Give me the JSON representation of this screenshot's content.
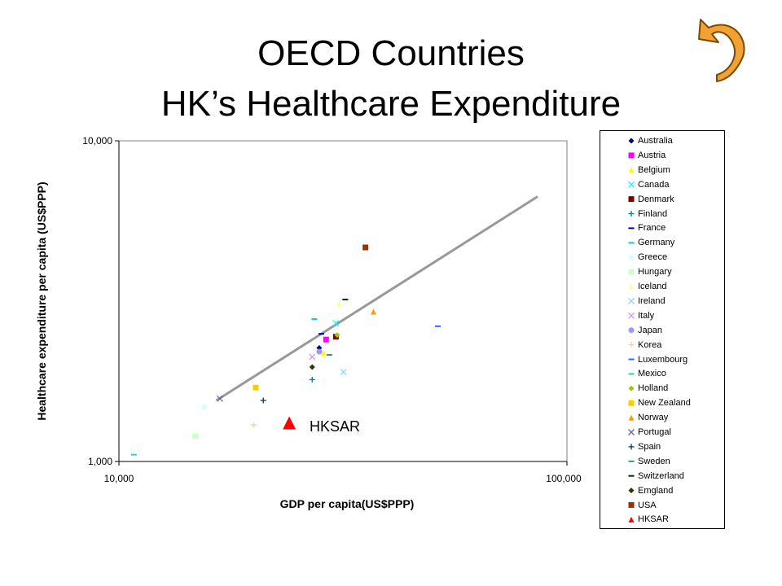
{
  "title_line1": "OECD Countries",
  "title_line2": "HK’s Healthcare Expenditure",
  "back_icon_color": "#f2a233",
  "chart_data": {
    "type": "scatter",
    "x_scale": "log",
    "y_scale": "log",
    "xlim": [
      10000,
      100000
    ],
    "ylim": [
      1000,
      10000
    ],
    "xlabel": "GDP per capita(US$PPP)",
    "ylabel": "Healthcare expenditure per capita  (US$PPP)",
    "x_ticks": [
      "10,000",
      "100,000"
    ],
    "y_ticks": [
      "10,000",
      "1,000"
    ],
    "grid": false,
    "legend_placement": "right",
    "trendline": {
      "x": [
        16500,
        86000
      ],
      "y": [
        1550,
        6700
      ],
      "color": "#999999"
    },
    "annotation": "HKSAR",
    "series": [
      {
        "name": "Australia",
        "marker": "diamond",
        "color": "#000080",
        "x": [
          28000
        ],
        "y": [
          2260
        ]
      },
      {
        "name": "Austria",
        "marker": "square",
        "color": "#ff00ff",
        "x": [
          29000
        ],
        "y": [
          2400
        ]
      },
      {
        "name": "Belgium",
        "marker": "triangle",
        "color": "#ffff00",
        "x": [
          28600
        ],
        "y": [
          2180
        ]
      },
      {
        "name": "Canada",
        "marker": "x",
        "color": "#00ffff",
        "x": [
          30500
        ],
        "y": [
          2700
        ]
      },
      {
        "name": "Denmark",
        "marker": "square",
        "color": "#800000",
        "x": [
          30500
        ],
        "y": [
          2450
        ]
      },
      {
        "name": "Finland",
        "marker": "plus",
        "color": "#008080",
        "x": [
          27000
        ],
        "y": [
          1800
        ]
      },
      {
        "name": "France",
        "marker": "dash",
        "color": "#000080",
        "x": [
          28300
        ],
        "y": [
          2500
        ]
      },
      {
        "name": "Germany",
        "marker": "dash",
        "color": "#00ccff",
        "x": [
          27300
        ],
        "y": [
          2780
        ]
      },
      {
        "name": "Greece",
        "marker": "diamond",
        "color": "#ccffff",
        "x": [
          15500
        ],
        "y": [
          1480
        ]
      },
      {
        "name": "Hungary",
        "marker": "square",
        "color": "#ccffcc",
        "x": [
          14800
        ],
        "y": [
          1200
        ]
      },
      {
        "name": "Iceland",
        "marker": "triangle",
        "color": "#ffff99",
        "x": [
          31000
        ],
        "y": [
          3100
        ]
      },
      {
        "name": "Ireland",
        "marker": "x",
        "color": "#99ccff",
        "x": [
          31700
        ],
        "y": [
          1900
        ]
      },
      {
        "name": "Italy",
        "marker": "x",
        "color": "#cc99ff",
        "x": [
          27000
        ],
        "y": [
          2120
        ]
      },
      {
        "name": "Japan",
        "marker": "circle",
        "color": "#9999ff",
        "x": [
          28000
        ],
        "y": [
          2200
        ]
      },
      {
        "name": "Korea",
        "marker": "plus",
        "color": "#ffcc99",
        "x": [
          20000
        ],
        "y": [
          1300
        ]
      },
      {
        "name": "Luxembourg",
        "marker": "dash",
        "color": "#3366ff",
        "x": [
          51500
        ],
        "y": [
          2640
        ]
      },
      {
        "name": "Mexico",
        "marker": "dash",
        "color": "#33cccc",
        "x": [
          10800
        ],
        "y": [
          1050
        ]
      },
      {
        "name": "Holland",
        "marker": "diamond",
        "color": "#99cc00",
        "x": [
          30700
        ],
        "y": [
          2480
        ]
      },
      {
        "name": "New Zealand",
        "marker": "square",
        "color": "#ffcc00",
        "x": [
          20200
        ],
        "y": [
          1700
        ]
      },
      {
        "name": "Norway",
        "marker": "triangle",
        "color": "#ff9900",
        "x": [
          37000
        ],
        "y": [
          2930
        ]
      },
      {
        "name": "Portugal",
        "marker": "x",
        "color": "#666699",
        "x": [
          16800
        ],
        "y": [
          1570
        ]
      },
      {
        "name": "Spain",
        "marker": "plus",
        "color": "#003366",
        "x": [
          21000
        ],
        "y": [
          1550
        ]
      },
      {
        "name": "Sweden",
        "marker": "dash",
        "color": "#339966",
        "x": [
          29500
        ],
        "y": [
          2150
        ]
      },
      {
        "name": "Switzerland",
        "marker": "dash",
        "color": "#003300",
        "x": [
          32000
        ],
        "y": [
          3200
        ]
      },
      {
        "name": "Emgland",
        "marker": "diamond",
        "color": "#333300",
        "x": [
          27000
        ],
        "y": [
          1970
        ]
      },
      {
        "name": "USA",
        "marker": "square",
        "color": "#993300",
        "x": [
          35500
        ],
        "y": [
          4650
        ]
      },
      {
        "name": "HKSAR",
        "marker": "triangle",
        "color": "#ff0000",
        "x": [
          24000
        ],
        "y": [
          1320
        ]
      }
    ]
  }
}
